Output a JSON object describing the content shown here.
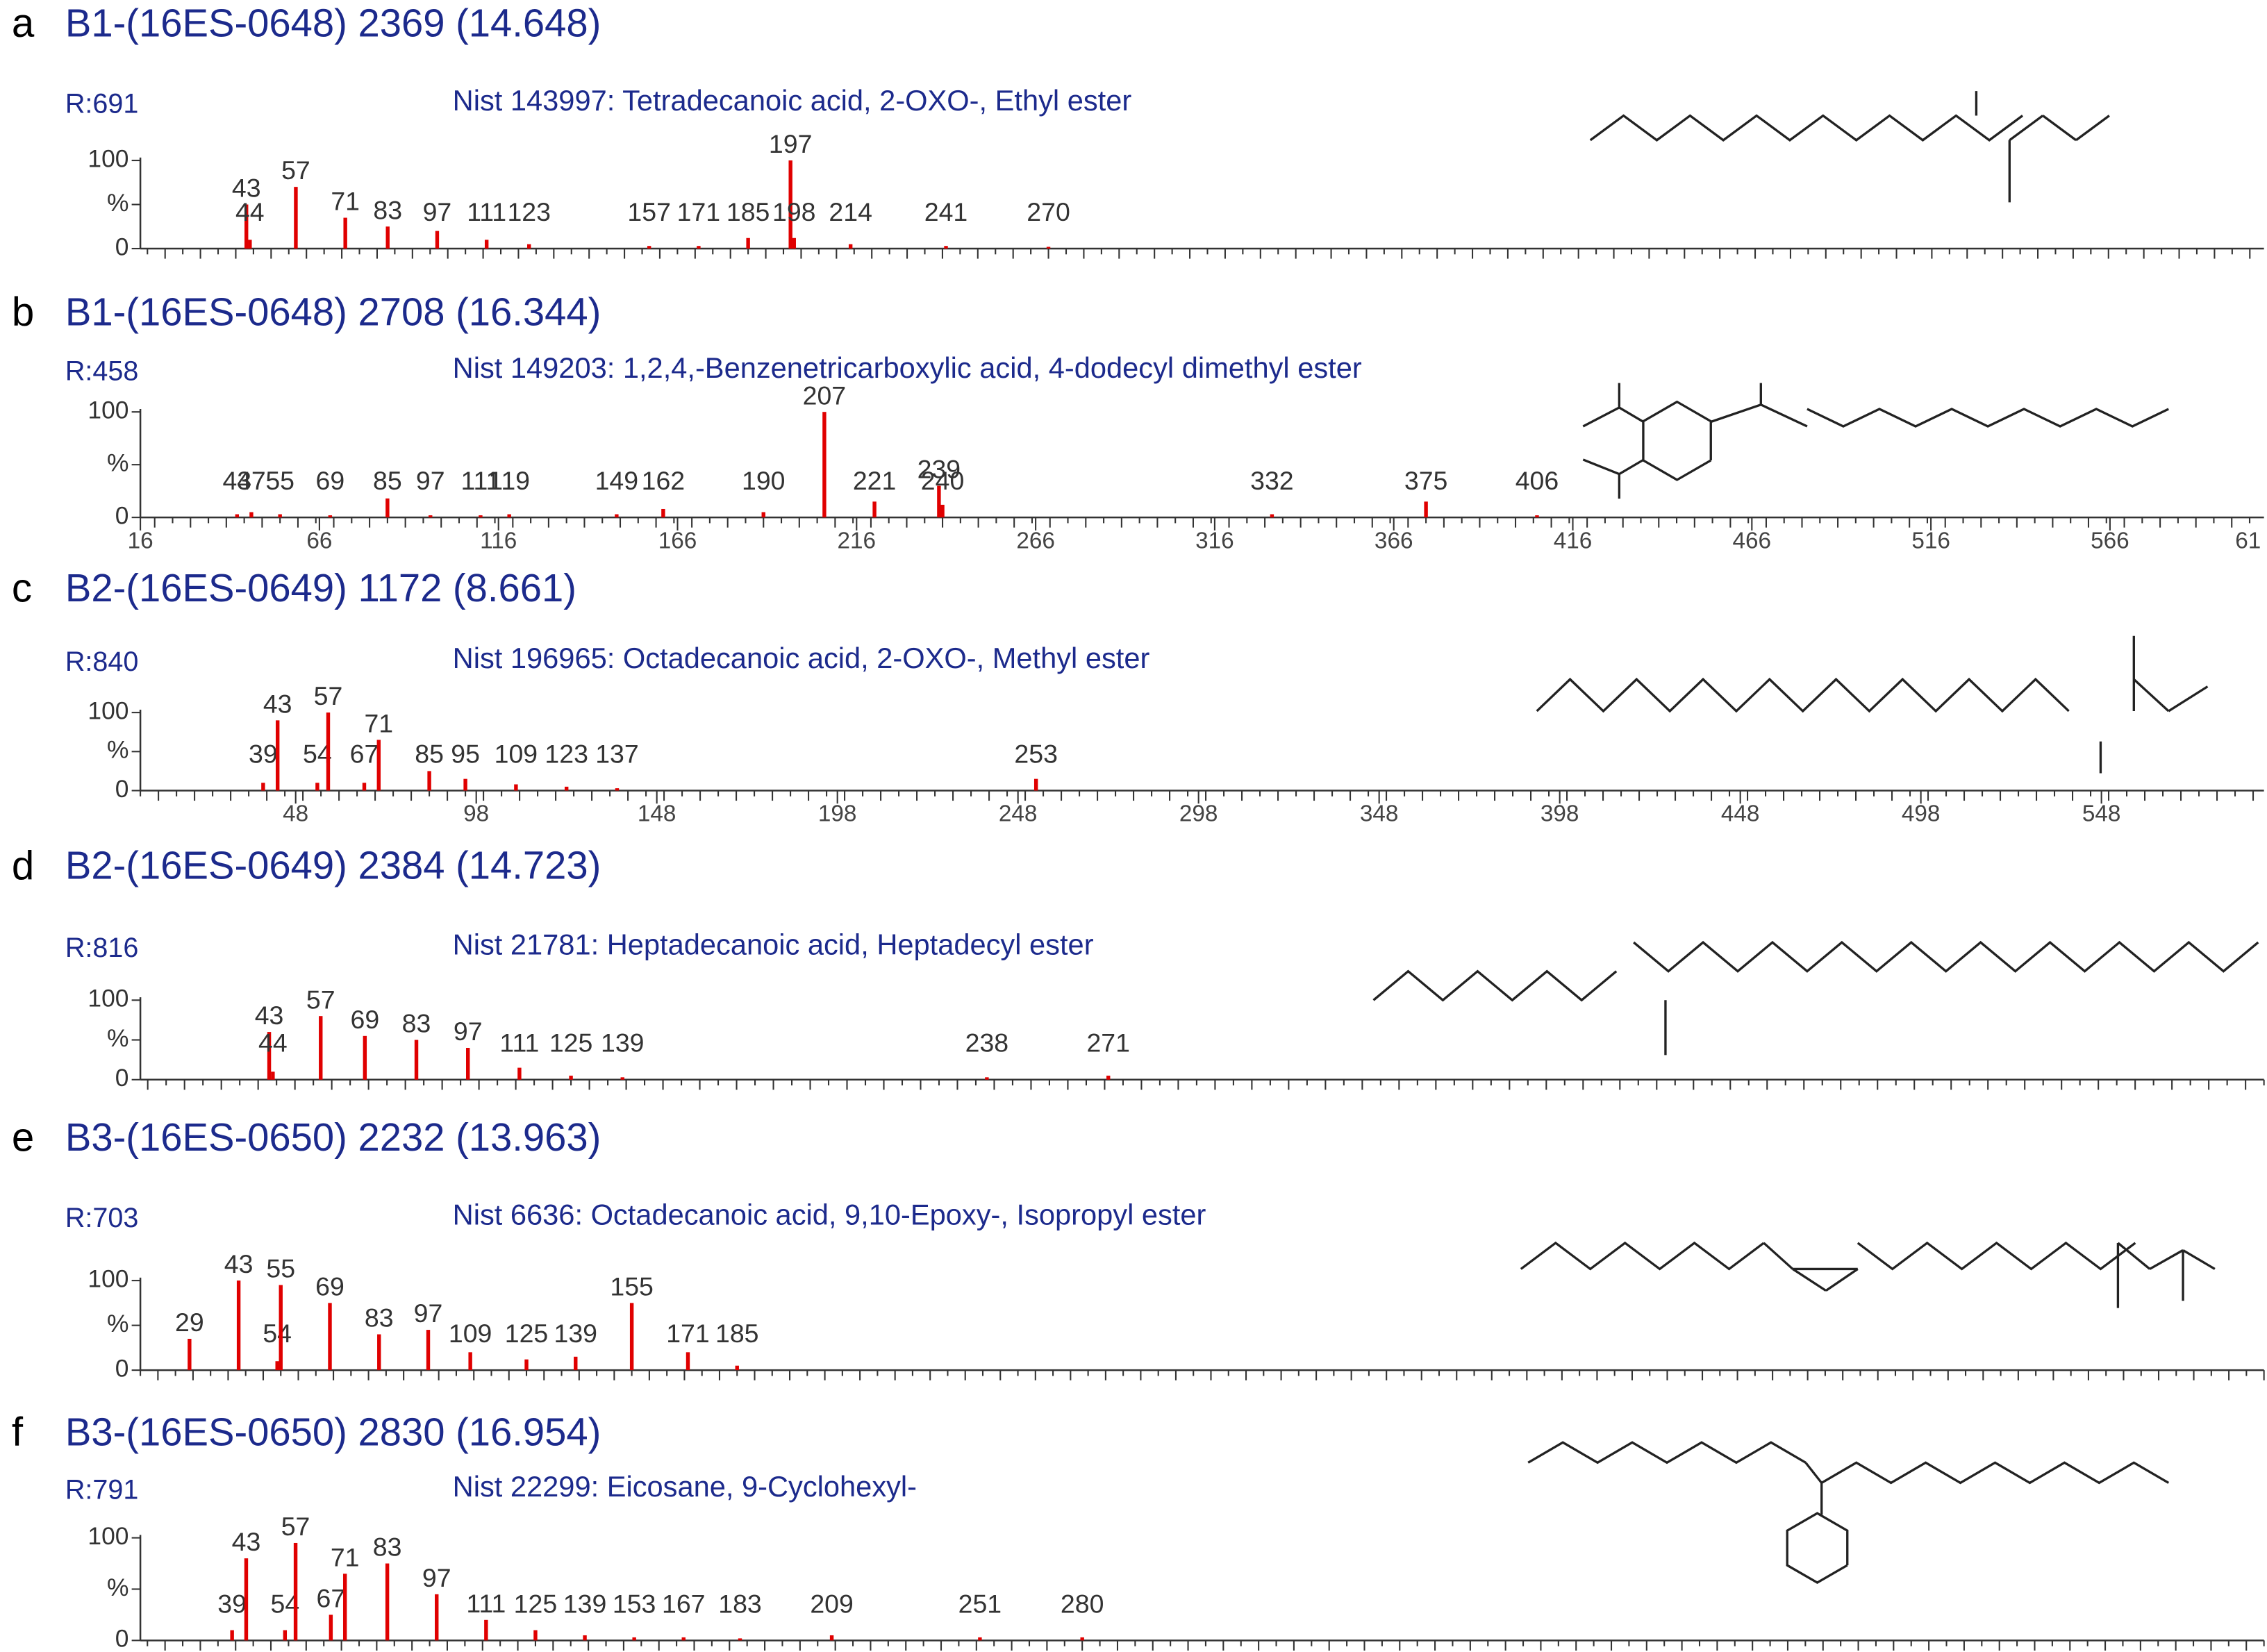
{
  "chart_data": [
    {
      "type": "bar",
      "panel": "a",
      "title": "B1-(16ES-0648) 2369 (14.648)",
      "annotation": "R:691",
      "library_match": "Nist 143997: Tetradecanoic acid, 2-OXO-, Ethyl ester",
      "x": [
        43,
        44,
        57,
        71,
        83,
        97,
        111,
        123,
        157,
        171,
        185,
        197,
        198,
        214,
        241,
        270
      ],
      "values": [
        50,
        10,
        70,
        35,
        25,
        20,
        10,
        5,
        3,
        3,
        12,
        100,
        12,
        5,
        3,
        2
      ],
      "xlim": [
        13,
        614
      ],
      "ylim": [
        0,
        100
      ],
      "yticks": [
        0,
        {
          "value": 50,
          "label": "%"
        },
        100
      ],
      "color": "#e00000"
    },
    {
      "type": "bar",
      "panel": "b",
      "title": "B1-(16ES-0648) 2708 (16.344)",
      "annotation": "R:458",
      "library_match": "Nist 149203: 1,2,4,-Benzenetricarboxylic acid, 4-dodecyl dimethyl ester",
      "x": [
        43,
        47,
        55,
        69,
        85,
        97,
        111,
        119,
        149,
        162,
        190,
        207,
        221,
        239,
        240,
        332,
        375,
        406
      ],
      "values": [
        3,
        5,
        3,
        2,
        18,
        2,
        2,
        3,
        3,
        8,
        5,
        100,
        15,
        30,
        12,
        3,
        15,
        2
      ],
      "xlim": [
        16,
        609
      ],
      "ylim": [
        0,
        100
      ],
      "yticks": [
        0,
        {
          "value": 50,
          "label": "%"
        },
        100
      ],
      "xticks": [
        16,
        66,
        116,
        166,
        216,
        266,
        316,
        366,
        416,
        466,
        516,
        566,
        {
          "value": 616,
          "label": "61"
        }
      ],
      "color": "#e00000"
    },
    {
      "type": "bar",
      "panel": "c",
      "title": "B2-(16ES-0649) 1172 (8.661)",
      "annotation": "R:840",
      "library_match": "Nist 196965: Octadecanoic acid, 2-OXO-, Methyl ester",
      "x": [
        39,
        43,
        54,
        57,
        67,
        71,
        85,
        95,
        109,
        123,
        137,
        253
      ],
      "values": [
        10,
        90,
        10,
        100,
        10,
        65,
        25,
        15,
        8,
        5,
        3,
        15
      ],
      "xlim": [
        5,
        593
      ],
      "ylim": [
        0,
        100
      ],
      "yticks": [
        0,
        {
          "value": 50,
          "label": "%"
        },
        100
      ],
      "xticks": [
        48,
        98,
        148,
        198,
        248,
        298,
        348,
        398,
        448,
        498,
        548
      ],
      "color": "#e00000"
    },
    {
      "type": "bar",
      "panel": "d",
      "title": "B2-(16ES-0649) 2384 (14.723)",
      "annotation": "R:816",
      "library_match": "Nist 21781: Heptadecanoic acid, Heptadecyl ester",
      "x": [
        43,
        44,
        57,
        69,
        83,
        97,
        111,
        125,
        139,
        238,
        271
      ],
      "values": [
        60,
        10,
        80,
        55,
        50,
        40,
        15,
        5,
        3,
        3,
        5
      ],
      "xlim": [
        8,
        585
      ],
      "ylim": [
        0,
        100
      ],
      "yticks": [
        0,
        {
          "value": 50,
          "label": "%"
        },
        100
      ],
      "color": "#e00000"
    },
    {
      "type": "bar",
      "panel": "e",
      "title": "B3-(16ES-0650) 2232 (13.963)",
      "annotation": "R:703",
      "library_match": "Nist 6636: Octadecanoic acid, 9,10-Epoxy-, Isopropyl ester",
      "x": [
        29,
        43,
        54,
        55,
        69,
        83,
        97,
        109,
        125,
        139,
        155,
        171,
        185
      ],
      "values": [
        35,
        100,
        10,
        95,
        75,
        40,
        45,
        20,
        12,
        15,
        75,
        20,
        5
      ],
      "xlim": [
        15,
        620
      ],
      "ylim": [
        0,
        100
      ],
      "yticks": [
        0,
        {
          "value": 50,
          "label": "%"
        },
        100
      ],
      "color": "#e00000"
    },
    {
      "type": "bar",
      "panel": "f",
      "title": "B3-(16ES-0650) 2830 (16.954)",
      "annotation": "R:791",
      "library_match": "Nist 22299: Eicosane, 9-Cyclohexyl-",
      "x": [
        39,
        43,
        54,
        57,
        67,
        71,
        83,
        97,
        111,
        125,
        139,
        153,
        167,
        183,
        209,
        251,
        280
      ],
      "values": [
        10,
        80,
        10,
        95,
        25,
        65,
        75,
        45,
        20,
        10,
        5,
        3,
        3,
        2,
        5,
        3,
        3
      ],
      "xlim": [
        13,
        615
      ],
      "ylim": [
        0,
        100
      ],
      "yticks": [
        0,
        {
          "value": 50,
          "label": "%"
        },
        100
      ],
      "color": "#e00000"
    }
  ]
}
